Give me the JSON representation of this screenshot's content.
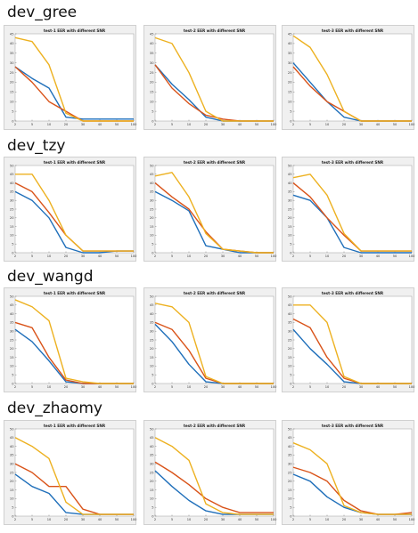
{
  "colors": {
    "blue": "#1f6fba",
    "orange": "#d95319",
    "yellow": "#edb120"
  },
  "xlabels": [
    "2",
    "5",
    "10",
    "20",
    "30",
    "40",
    "50",
    "100"
  ],
  "rows": [
    {
      "title": "dev_gree",
      "ymax": 45,
      "yticks": [
        "0",
        "5",
        "10",
        "15",
        "20",
        "25",
        "30",
        "35",
        "40",
        "45"
      ]
    },
    {
      "title": "dev_tzy",
      "ymax": 50,
      "yticks": [
        "0",
        "5",
        "10",
        "15",
        "20",
        "25",
        "30",
        "35",
        "40",
        "45",
        "50"
      ]
    },
    {
      "title": "dev_wangd",
      "ymax": 50,
      "yticks": [
        "0",
        "5",
        "10",
        "15",
        "20",
        "25",
        "30",
        "35",
        "40",
        "45",
        "50"
      ]
    },
    {
      "title": "dev_zhaomy",
      "ymax": 50,
      "yticks": [
        "0",
        "5",
        "10",
        "15",
        "20",
        "25",
        "30",
        "35",
        "40",
        "45",
        "50"
      ]
    }
  ],
  "chart_data": [
    {
      "type": "line",
      "title": "test-1 EER with different SNR",
      "row": 0,
      "x": [
        "2",
        "5",
        "10",
        "20",
        "30",
        "40",
        "50",
        "100"
      ],
      "ylim": [
        0,
        45
      ],
      "series": [
        {
          "color": "blue",
          "values": [
            28,
            22,
            17,
            2,
            1,
            1,
            1,
            1
          ]
        },
        {
          "color": "orange",
          "values": [
            28,
            20,
            10,
            5,
            0,
            0,
            0,
            0
          ]
        },
        {
          "color": "yellow",
          "values": [
            43,
            41,
            29,
            4,
            0,
            0,
            0,
            0
          ]
        }
      ]
    },
    {
      "type": "line",
      "title": "test-2 EER with different SNR",
      "row": 0,
      "x": [
        "2",
        "5",
        "10",
        "20",
        "30",
        "40",
        "50",
        "100"
      ],
      "ylim": [
        0,
        45
      ],
      "series": [
        {
          "color": "blue",
          "values": [
            29,
            19,
            11,
            2,
            0,
            0,
            0,
            0
          ]
        },
        {
          "color": "orange",
          "values": [
            29,
            17,
            9,
            3,
            1,
            0,
            0,
            0
          ]
        },
        {
          "color": "yellow",
          "values": [
            43,
            40,
            25,
            5,
            0,
            0,
            0,
            0
          ]
        }
      ]
    },
    {
      "type": "line",
      "title": "test-3 EER with different SNR",
      "row": 0,
      "x": [
        "2",
        "5",
        "10",
        "20",
        "30",
        "40",
        "50",
        "100"
      ],
      "ylim": [
        0,
        45
      ],
      "series": [
        {
          "color": "blue",
          "values": [
            30,
            20,
            10,
            2,
            0,
            0,
            0,
            0
          ]
        },
        {
          "color": "orange",
          "values": [
            28,
            18,
            10,
            5,
            0,
            0,
            0,
            0
          ]
        },
        {
          "color": "yellow",
          "values": [
            44,
            38,
            24,
            5,
            0,
            0,
            0,
            0
          ]
        }
      ]
    },
    {
      "type": "line",
      "title": "test-1 EER with different SNR",
      "row": 1,
      "x": [
        "2",
        "5",
        "10",
        "20",
        "30",
        "40",
        "50",
        "100"
      ],
      "ylim": [
        0,
        50
      ],
      "series": [
        {
          "color": "blue",
          "values": [
            35,
            30,
            20,
            3,
            0,
            0,
            1,
            1
          ]
        },
        {
          "color": "orange",
          "values": [
            40,
            35,
            23,
            10,
            1,
            1,
            1,
            1
          ]
        },
        {
          "color": "yellow",
          "values": [
            45,
            45,
            30,
            10,
            1,
            1,
            1,
            1
          ]
        }
      ]
    },
    {
      "type": "line",
      "title": "test-2 EER with different SNR",
      "row": 1,
      "x": [
        "2",
        "5",
        "10",
        "20",
        "30",
        "40",
        "50",
        "100"
      ],
      "ylim": [
        0,
        50
      ],
      "series": [
        {
          "color": "blue",
          "values": [
            35,
            30,
            24,
            4,
            2,
            0,
            0,
            0
          ]
        },
        {
          "color": "orange",
          "values": [
            40,
            32,
            25,
            12,
            2,
            1,
            0,
            0
          ]
        },
        {
          "color": "yellow",
          "values": [
            44,
            46,
            32,
            11,
            2,
            1,
            0,
            0
          ]
        }
      ]
    },
    {
      "type": "line",
      "title": "test-3 EER with different SNR",
      "row": 1,
      "x": [
        "2",
        "5",
        "10",
        "20",
        "30",
        "40",
        "50",
        "100"
      ],
      "ylim": [
        0,
        50
      ],
      "series": [
        {
          "color": "blue",
          "values": [
            33,
            30,
            20,
            3,
            0,
            0,
            0,
            0
          ]
        },
        {
          "color": "orange",
          "values": [
            40,
            32,
            20,
            10,
            1,
            1,
            1,
            1
          ]
        },
        {
          "color": "yellow",
          "values": [
            43,
            45,
            33,
            11,
            1,
            1,
            1,
            1
          ]
        }
      ]
    },
    {
      "type": "line",
      "title": "test-1 EER with different SNR",
      "row": 2,
      "x": [
        "2",
        "5",
        "10",
        "20",
        "30",
        "40",
        "50",
        "100"
      ],
      "ylim": [
        0,
        50
      ],
      "series": [
        {
          "color": "blue",
          "values": [
            31,
            24,
            13,
            1,
            0,
            0,
            0,
            0
          ]
        },
        {
          "color": "orange",
          "values": [
            35,
            32,
            15,
            2,
            0,
            0,
            0,
            0
          ]
        },
        {
          "color": "yellow",
          "values": [
            48,
            44,
            36,
            3,
            1,
            0,
            0,
            0
          ]
        }
      ]
    },
    {
      "type": "line",
      "title": "test-2 EER with different SNR",
      "row": 2,
      "x": [
        "2",
        "5",
        "10",
        "20",
        "30",
        "40",
        "50",
        "100"
      ],
      "ylim": [
        0,
        50
      ],
      "series": [
        {
          "color": "blue",
          "values": [
            34,
            24,
            11,
            1,
            0,
            0,
            0,
            0
          ]
        },
        {
          "color": "orange",
          "values": [
            35,
            31,
            19,
            3,
            0,
            0,
            0,
            0
          ]
        },
        {
          "color": "yellow",
          "values": [
            46,
            44,
            35,
            4,
            0,
            0,
            0,
            0
          ]
        }
      ]
    },
    {
      "type": "line",
      "title": "test-3 EER with different SNR",
      "row": 2,
      "x": [
        "2",
        "5",
        "10",
        "20",
        "30",
        "40",
        "50",
        "100"
      ],
      "ylim": [
        0,
        50
      ],
      "series": [
        {
          "color": "blue",
          "values": [
            31,
            20,
            11,
            1,
            0,
            0,
            0,
            0
          ]
        },
        {
          "color": "orange",
          "values": [
            37,
            32,
            15,
            3,
            0,
            0,
            0,
            0
          ]
        },
        {
          "color": "yellow",
          "values": [
            45,
            45,
            35,
            4,
            0,
            0,
            0,
            0
          ]
        }
      ]
    },
    {
      "type": "line",
      "title": "test-1 EER with different SNR",
      "row": 3,
      "x": [
        "2",
        "5",
        "10",
        "20",
        "30",
        "40",
        "50",
        "100"
      ],
      "ylim": [
        0,
        50
      ],
      "series": [
        {
          "color": "blue",
          "values": [
            24,
            17,
            13,
            2,
            1,
            1,
            1,
            1
          ]
        },
        {
          "color": "orange",
          "values": [
            30,
            25,
            17,
            17,
            4,
            1,
            1,
            1
          ]
        },
        {
          "color": "yellow",
          "values": [
            45,
            40,
            33,
            8,
            1,
            1,
            1,
            1
          ]
        }
      ]
    },
    {
      "type": "line",
      "title": "test-2 EER with different SNR",
      "row": 3,
      "x": [
        "2",
        "5",
        "10",
        "20",
        "30",
        "40",
        "50",
        "100"
      ],
      "ylim": [
        0,
        50
      ],
      "series": [
        {
          "color": "blue",
          "values": [
            26,
            17,
            9,
            3,
            1,
            1,
            1,
            1
          ]
        },
        {
          "color": "orange",
          "values": [
            31,
            25,
            18,
            10,
            5,
            2,
            2,
            2
          ]
        },
        {
          "color": "yellow",
          "values": [
            45,
            40,
            32,
            7,
            2,
            1,
            1,
            1
          ]
        }
      ]
    },
    {
      "type": "line",
      "title": "test-3 EER with different SNR",
      "row": 3,
      "x": [
        "2",
        "5",
        "10",
        "20",
        "30",
        "40",
        "50",
        "100"
      ],
      "ylim": [
        0,
        50
      ],
      "series": [
        {
          "color": "blue",
          "values": [
            24,
            20,
            11,
            5,
            2,
            1,
            1,
            1
          ]
        },
        {
          "color": "orange",
          "values": [
            28,
            25,
            20,
            9,
            3,
            1,
            1,
            2
          ]
        },
        {
          "color": "yellow",
          "values": [
            42,
            38,
            30,
            6,
            2,
            1,
            1,
            1
          ]
        }
      ]
    }
  ]
}
